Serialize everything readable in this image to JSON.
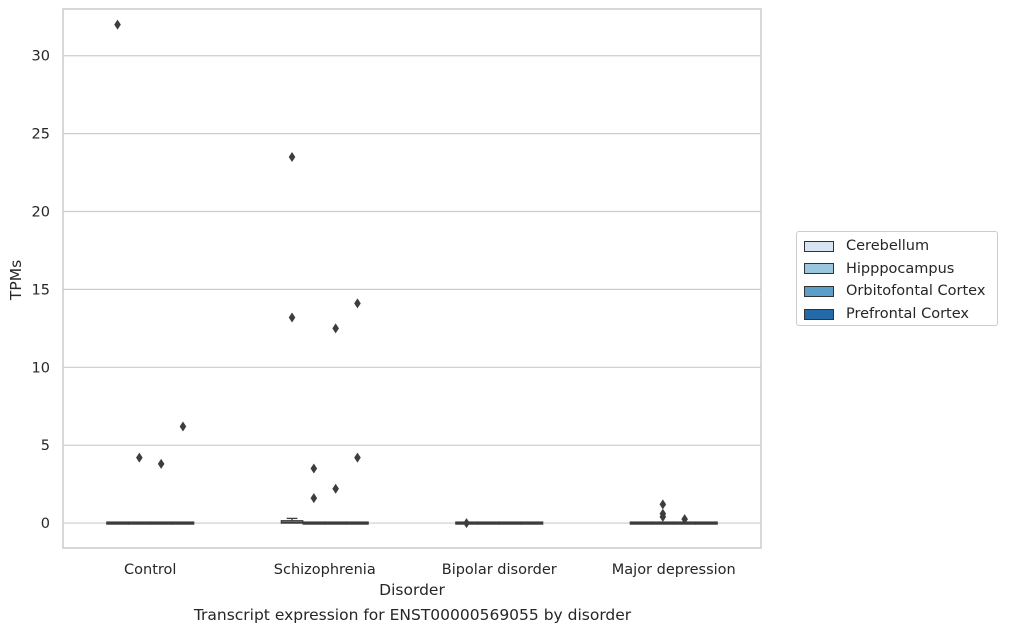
{
  "caption": "Transcript expression for ENST00000569055 by disorder",
  "legend": {
    "items": [
      {
        "label": "Cerebellum",
        "color": "#d6e5f1"
      },
      {
        "label": "Hipppocampus",
        "color": "#9ac7e0"
      },
      {
        "label": "Orbitofontal Cortex",
        "color": "#5a9ec9"
      },
      {
        "label": "Prefrontal Cortex",
        "color": "#2469a8"
      }
    ]
  },
  "chart_data": {
    "type": "box",
    "xlabel": "Disorder",
    "ylabel": "TPMs",
    "categories": [
      "Control",
      "Schizophrenia",
      "Bipolar disorder",
      "Major depression"
    ],
    "ylim": [
      -1.6,
      33.0
    ],
    "yticks": [
      0,
      5,
      10,
      15,
      20,
      25,
      30
    ],
    "grid": true,
    "legend_position": "right",
    "series": [
      {
        "name": "Cerebellum",
        "boxes": [
          {
            "q1": 0,
            "median": 0,
            "q3": 0,
            "whisker_low": 0,
            "whisker_high": 0,
            "outliers": [
              32.0
            ]
          },
          {
            "q1": 0,
            "median": 0.05,
            "q3": 0.15,
            "whisker_low": 0,
            "whisker_high": 0.3,
            "outliers": [
              23.5,
              13.2
            ]
          },
          {
            "q1": 0,
            "median": 0,
            "q3": 0,
            "whisker_low": 0,
            "whisker_high": 0,
            "outliers": [
              0.0
            ]
          },
          {
            "q1": 0,
            "median": 0,
            "q3": 0,
            "whisker_low": 0,
            "whisker_high": 0,
            "outliers": []
          }
        ]
      },
      {
        "name": "Hipppocampus",
        "boxes": [
          {
            "q1": 0,
            "median": 0,
            "q3": 0,
            "whisker_low": 0,
            "whisker_high": 0,
            "outliers": [
              4.2
            ]
          },
          {
            "q1": 0,
            "median": 0,
            "q3": 0,
            "whisker_low": 0,
            "whisker_high": 0,
            "outliers": [
              3.5,
              1.6
            ]
          },
          {
            "q1": 0,
            "median": 0,
            "q3": 0,
            "whisker_low": 0,
            "whisker_high": 0,
            "outliers": []
          },
          {
            "q1": 0,
            "median": 0,
            "q3": 0,
            "whisker_low": 0,
            "whisker_high": 0,
            "outliers": [
              1.2,
              0.6,
              0.4
            ]
          }
        ]
      },
      {
        "name": "Orbitofontal Cortex",
        "boxes": [
          {
            "q1": 0,
            "median": 0,
            "q3": 0,
            "whisker_low": 0,
            "whisker_high": 0,
            "outliers": [
              3.8
            ]
          },
          {
            "q1": 0,
            "median": 0,
            "q3": 0,
            "whisker_low": 0,
            "whisker_high": 0,
            "outliers": [
              12.5,
              2.2
            ]
          },
          {
            "q1": 0,
            "median": 0,
            "q3": 0,
            "whisker_low": 0,
            "whisker_high": 0,
            "outliers": []
          },
          {
            "q1": 0,
            "median": 0,
            "q3": 0,
            "whisker_low": 0,
            "whisker_high": 0,
            "outliers": [
              0.25
            ]
          }
        ]
      },
      {
        "name": "Prefrontal Cortex",
        "boxes": [
          {
            "q1": 0,
            "median": 0,
            "q3": 0,
            "whisker_low": 0,
            "whisker_high": 0,
            "outliers": [
              6.2
            ]
          },
          {
            "q1": 0,
            "median": 0,
            "q3": 0,
            "whisker_low": 0,
            "whisker_high": 0,
            "outliers": [
              14.1,
              4.2
            ]
          },
          {
            "q1": 0,
            "median": 0,
            "q3": 0,
            "whisker_low": 0,
            "whisker_high": 0,
            "outliers": []
          },
          {
            "q1": 0,
            "median": 0,
            "q3": 0,
            "whisker_low": 0,
            "whisker_high": 0,
            "outliers": []
          }
        ]
      }
    ]
  }
}
